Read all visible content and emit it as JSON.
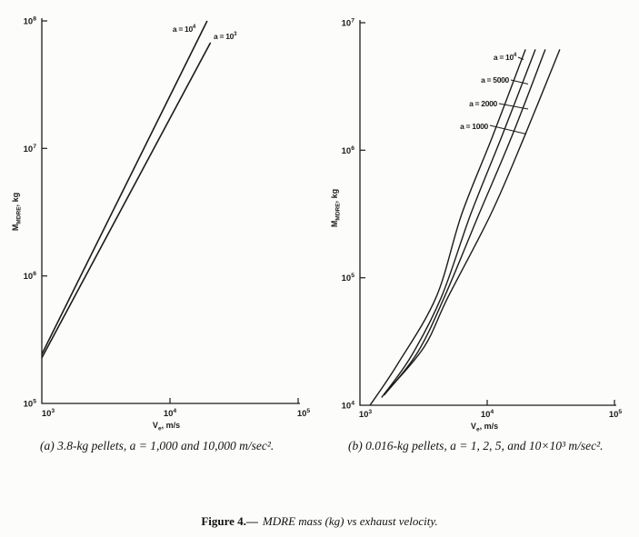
{
  "page": {
    "background": "#fcfcfa",
    "ink": "#1b1b1b"
  },
  "figure_caption": {
    "label": "Figure 4.—",
    "title": "MDRE mass (kg) vs exhaust velocity."
  },
  "chart_data": [
    {
      "id": "left",
      "type": "line",
      "title": "",
      "xlabel": {
        "pre": "V",
        "sub": "e",
        "post": ", m/s"
      },
      "ylabel": {
        "pre": "M",
        "sub": "MDRE",
        "post": ", kg"
      },
      "xlim": [
        1000,
        100000
      ],
      "ylim": [
        100000,
        100000000
      ],
      "log_axes": true,
      "grid": false,
      "x_ticks": [
        {
          "value": 1000,
          "base": "10",
          "exp": "3"
        },
        {
          "value": 10000,
          "base": "10",
          "exp": "4"
        },
        {
          "value": 100000,
          "base": "10",
          "exp": "5"
        }
      ],
      "y_ticks": [
        {
          "value": 100000000,
          "base": "10",
          "exp": "8"
        },
        {
          "value": 10000000,
          "base": "10",
          "exp": "7"
        },
        {
          "value": 1000000,
          "base": "10",
          "exp": "6"
        },
        {
          "value": 100000,
          "base": "10",
          "exp": "5"
        }
      ],
      "series": [
        {
          "name": "a = 10^4",
          "a_m_per_s2": 10000,
          "label_pre": "a = 10",
          "label_exp": "4",
          "points": [
            [
              1000,
              243000
            ],
            [
              19500,
              100000000
            ]
          ]
        },
        {
          "name": "a = 10^3",
          "a_m_per_s2": 1000,
          "label_pre": "a = 10",
          "label_exp": "3",
          "points": [
            [
              1000,
              228000
            ],
            [
              20700,
              67600000
            ]
          ]
        }
      ],
      "caption": "(a) 3.8-kg pellets, a = 1,000 and 10,000 m/sec²."
    },
    {
      "id": "right",
      "type": "line",
      "title": "",
      "xlabel": {
        "pre": "V",
        "sub": "e",
        "post": ", m/s"
      },
      "ylabel": {
        "pre": "M",
        "sub": "MDRE",
        "post": ", kg"
      },
      "xlim": [
        1000,
        100000
      ],
      "ylim": [
        10000,
        10000000
      ],
      "log_axes": true,
      "grid": false,
      "x_ticks": [
        {
          "value": 1000,
          "base": "10",
          "exp": "3"
        },
        {
          "value": 10000,
          "base": "10",
          "exp": "4"
        },
        {
          "value": 100000,
          "base": "10",
          "exp": "5"
        }
      ],
      "y_ticks": [
        {
          "value": 10000000,
          "base": "10",
          "exp": "7"
        },
        {
          "value": 1000000,
          "base": "10",
          "exp": "6"
        },
        {
          "value": 100000,
          "base": "10",
          "exp": "5"
        },
        {
          "value": 10000,
          "base": "10",
          "exp": "4"
        }
      ],
      "series": [
        {
          "name": "a = 10^4",
          "a_m_per_s2": 10000,
          "label_pre": "a = 10",
          "label_exp": "4",
          "points": [
            [
              1200,
              10000
            ],
            [
              2000,
              21400
            ],
            [
              3980,
              70800
            ],
            [
              6310,
              316000
            ],
            [
              11000,
              1280000
            ],
            [
              20000,
              6170000
            ]
          ]
        },
        {
          "name": "a = 5000",
          "a_m_per_s2": 5000,
          "label_pre": "a = 5000",
          "label_exp": "",
          "points": [
            [
              1480,
              11500
            ],
            [
              2510,
              24000
            ],
            [
              4370,
              70800
            ],
            [
              7430,
              316000
            ],
            [
              13000,
              1280000
            ],
            [
              23900,
              6170000
            ]
          ]
        },
        {
          "name": "a = 2000",
          "a_m_per_s2": 2000,
          "label_pre": "a = 2000",
          "label_exp": "",
          "points": [
            [
              1550,
              12000
            ],
            [
              2820,
              25700
            ],
            [
              4620,
              70800
            ],
            [
              8630,
              316000
            ],
            [
              15600,
              1280000
            ],
            [
              28600,
              6170000
            ]
          ]
        },
        {
          "name": "a = 1000",
          "a_m_per_s2": 1000,
          "label_pre": "a = 1000",
          "label_exp": "",
          "points": [
            [
              1600,
              12600
            ],
            [
              3160,
              28200
            ],
            [
              4930,
              70800
            ],
            [
              10700,
              316000
            ],
            [
              19600,
              1280000
            ],
            [
              37200,
              6170000
            ]
          ]
        }
      ],
      "caption": "(b) 0.016-kg pellets, a = 1, 2, 5, and 10×10³ m/sec²."
    }
  ]
}
